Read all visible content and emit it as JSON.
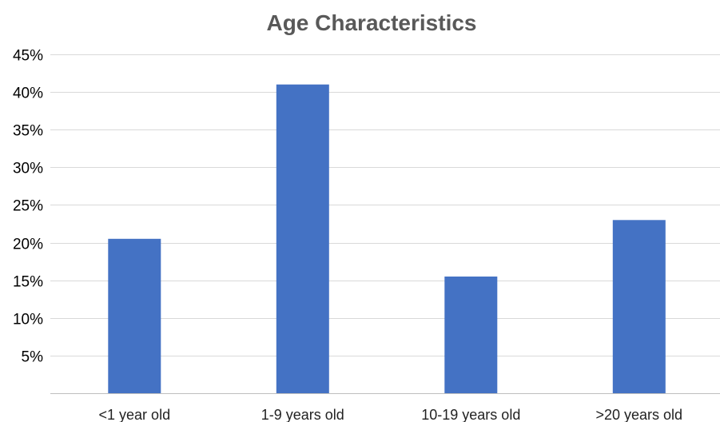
{
  "chart_data": {
    "type": "bar",
    "title": "Age Characteristics",
    "xlabel": "",
    "ylabel": "",
    "categories": [
      "<1 year old",
      "1-9 years old",
      "10-19 years old",
      ">20 years old"
    ],
    "series": [
      {
        "values": [
          20.5,
          41,
          15.5,
          23
        ]
      }
    ],
    "ylim": [
      0,
      45
    ],
    "yticks": [
      5,
      10,
      15,
      20,
      25,
      30,
      35,
      40,
      45
    ],
    "ytick_labels": [
      "5%",
      "10%",
      "15%",
      "20%",
      "25%",
      "30%",
      "35%",
      "40%",
      "45%"
    ],
    "grid": true,
    "legend": "none",
    "colors": {
      "bar": "#4472C4",
      "grid": "#D9D9D9",
      "axis": "#BFBFBF",
      "title": "#595959"
    }
  }
}
